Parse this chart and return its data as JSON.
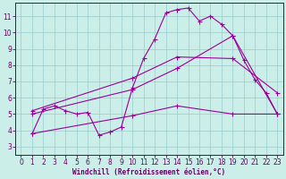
{
  "bg_color": "#cceee8",
  "line_color": "#990099",
  "grid_color": "#99cccc",
  "xlabel": "Windchill (Refroidissement éolien,°C)",
  "xlabel_color": "#660066",
  "tick_color": "#660066",
  "xlim": [
    -0.5,
    23.5
  ],
  "ylim": [
    2.5,
    11.8
  ],
  "yticks": [
    3,
    4,
    5,
    6,
    7,
    8,
    9,
    10,
    11
  ],
  "xticks": [
    0,
    1,
    2,
    3,
    4,
    5,
    6,
    7,
    8,
    9,
    10,
    11,
    12,
    13,
    14,
    15,
    16,
    17,
    18,
    19,
    20,
    21,
    22,
    23
  ],
  "line1_x": [
    1,
    2,
    3,
    4,
    5,
    6,
    7,
    8,
    9,
    10,
    11,
    12,
    13,
    14,
    15,
    16,
    17,
    18,
    19,
    20,
    21,
    22,
    23
  ],
  "line1_y": [
    3.8,
    5.3,
    5.5,
    5.2,
    5.0,
    5.1,
    3.7,
    3.9,
    4.2,
    6.6,
    8.4,
    9.6,
    11.2,
    11.4,
    11.5,
    10.7,
    11.0,
    10.5,
    9.8,
    8.3,
    7.1,
    6.3,
    5.0
  ],
  "line2_x": [
    1,
    10,
    14,
    19,
    23
  ],
  "line2_y": [
    5.2,
    7.2,
    8.5,
    8.4,
    6.3
  ],
  "line3_x": [
    1,
    10,
    14,
    19,
    23
  ],
  "line3_y": [
    5.0,
    6.5,
    7.8,
    9.8,
    5.0
  ],
  "line4_x": [
    1,
    10,
    14,
    19,
    23
  ],
  "line4_y": [
    3.8,
    4.9,
    5.5,
    5.0,
    5.0
  ]
}
